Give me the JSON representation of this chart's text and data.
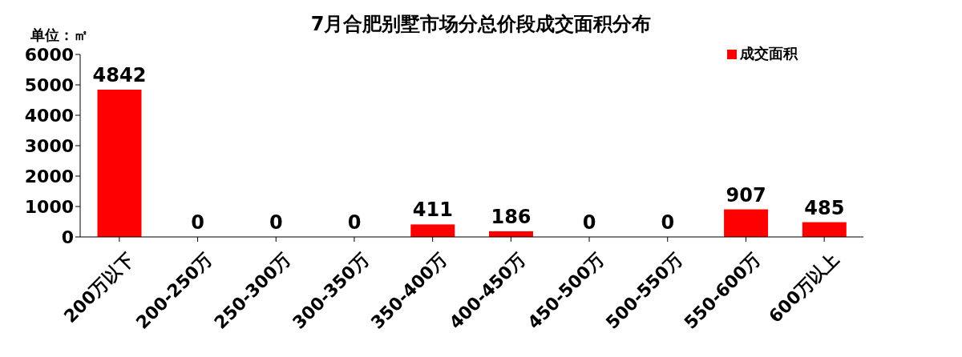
{
  "chart_data": {
    "type": "bar",
    "title": "7月合肥别墅市场分总价段成交面积分布",
    "annotations": [
      "单位：㎡"
    ],
    "categories": [
      "200万以下",
      "200-250万",
      "250-300万",
      "300-350万",
      "350-400万",
      "400-450万",
      "450-500万",
      "500-550万",
      "550-600万",
      "600万以上"
    ],
    "series": [
      {
        "name": "成交面积",
        "color": "#ff0000",
        "values": [
          4842,
          0,
          0,
          0,
          411,
          186,
          0,
          0,
          907,
          485
        ]
      }
    ],
    "ylim": [
      0,
      6000
    ],
    "yticks": [
      0,
      1000,
      2000,
      3000,
      4000,
      5000,
      6000
    ],
    "grid": false,
    "legend": "top right",
    "data_labels": true
  }
}
